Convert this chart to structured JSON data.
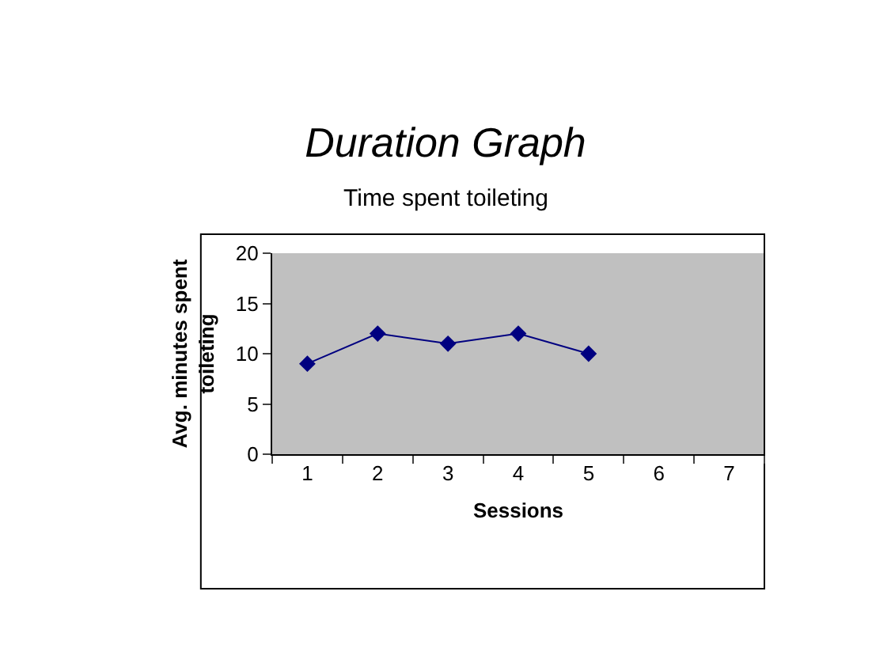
{
  "chart_data": {
    "type": "line",
    "title": "Duration Graph",
    "subtitle": "Time spent toileting",
    "xlabel": "Sessions",
    "ylabel": "Avg. minutes spent toileting",
    "categories": [
      "1",
      "2",
      "3",
      "4",
      "5",
      "6",
      "7"
    ],
    "series": [
      {
        "color": "#000080",
        "values": [
          9,
          12,
          11,
          12,
          10,
          null,
          null
        ]
      }
    ],
    "ylim": [
      0,
      20
    ],
    "yticks": [
      0,
      5,
      10,
      15,
      20
    ],
    "grid": false,
    "marker": "diamond",
    "line_style": "solid"
  }
}
